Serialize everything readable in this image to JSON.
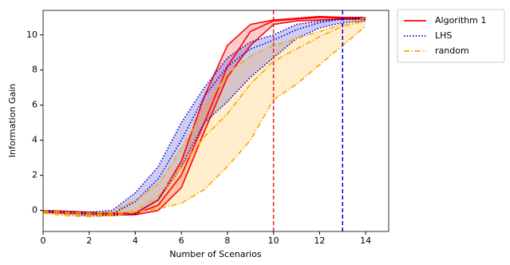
{
  "chart_data": {
    "type": "line",
    "xlabel": "Number of Scenarios",
    "ylabel": "Information Gain",
    "x": [
      0,
      1,
      2,
      3,
      4,
      5,
      6,
      7,
      8,
      9,
      10,
      11,
      12,
      13,
      14
    ],
    "xlim": [
      0,
      15
    ],
    "xticks": [
      0,
      2,
      4,
      6,
      8,
      10,
      12,
      14
    ],
    "ylim": [
      -1.2,
      11.4
    ],
    "yticks": [
      0,
      2,
      4,
      6,
      8,
      10
    ],
    "legend": "outside upper right",
    "series": [
      {
        "name": "Algorithm 1",
        "color": "#ff0000",
        "linestyle": "solid",
        "values": [
          -0.05,
          -0.1,
          -0.15,
          -0.2,
          -0.2,
          0.3,
          2,
          5,
          8.2,
          10.2,
          10.8,
          10.9,
          11,
          10.95,
          10.95
        ],
        "upper": [
          0,
          -0.05,
          -0.1,
          -0.15,
          -0.15,
          0.6,
          2.8,
          6.5,
          9.4,
          10.6,
          10.85,
          10.95,
          11.05,
          11,
          11
        ],
        "lower": [
          -0.1,
          -0.15,
          -0.2,
          -0.25,
          -0.25,
          0,
          1.3,
          4.5,
          7.6,
          9.4,
          10.6,
          10.8,
          10.85,
          10.9,
          10.9
        ]
      },
      {
        "name": "LHS",
        "color": "#0000cc",
        "linestyle": "dotted",
        "values": [
          -0.05,
          -0.1,
          -0.2,
          -0.2,
          0.5,
          1.8,
          4,
          6.5,
          8.2,
          9.2,
          9.7,
          10.3,
          10.7,
          10.9,
          10.9
        ],
        "upper": [
          0,
          -0.05,
          -0.1,
          0,
          1,
          2.5,
          5,
          7,
          8.7,
          9.6,
          10,
          10.6,
          10.8,
          10.9,
          11
        ],
        "lower": [
          -0.1,
          -0.2,
          -0.3,
          -0.3,
          -0.2,
          0.6,
          2.5,
          5,
          6.2,
          7.6,
          8.7,
          9.8,
          10.4,
          10.7,
          10.8
        ]
      },
      {
        "name": "random",
        "color": "#ffa500",
        "linestyle": "dashdot",
        "values": [
          -0.1,
          -0.2,
          -0.25,
          -0.2,
          0,
          0.8,
          2.5,
          4.2,
          5.5,
          7.2,
          8.5,
          9.2,
          9.9,
          10.5,
          10.8
        ],
        "upper": [
          0,
          -0.1,
          -0.15,
          -0.1,
          0.6,
          1.5,
          3.5,
          5.8,
          7.8,
          8.8,
          9.4,
          9.8,
          10.2,
          10.6,
          11
        ],
        "lower": [
          -0.15,
          -0.3,
          -0.35,
          -0.3,
          -0.1,
          0.1,
          0.4,
          1.2,
          2.5,
          4,
          6.3,
          7.2,
          8.3,
          9.4,
          10.5
        ]
      }
    ],
    "vlines": [
      {
        "x": 10,
        "color": "#dd2222"
      },
      {
        "x": 13,
        "color": "#0000dd"
      }
    ]
  }
}
